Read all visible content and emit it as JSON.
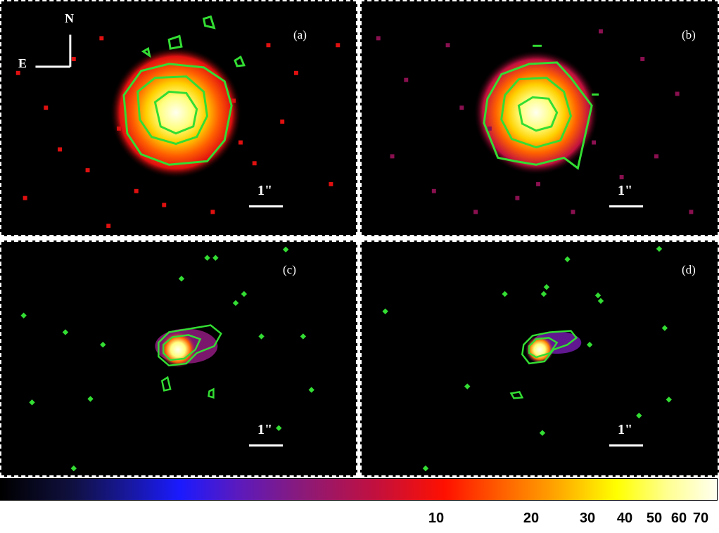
{
  "panels": [
    {
      "id": "a",
      "label": "(a)",
      "scale_label": "1\""
    },
    {
      "id": "b",
      "label": "(b)",
      "scale_label": "1\""
    },
    {
      "id": "c",
      "label": "(c)",
      "scale_label": "1\""
    },
    {
      "id": "d",
      "label": "(d)",
      "scale_label": "1\""
    }
  ],
  "compass": {
    "north": "N",
    "east": "E"
  },
  "colorbar": {
    "ticks": [
      "10",
      "20",
      "30",
      "40",
      "50",
      "60",
      "70"
    ],
    "colors": [
      "#000000",
      "#1a1aff",
      "#8a1a7a",
      "#ff1000",
      "#ffa000",
      "#ffff00",
      "#fffff0"
    ]
  },
  "contour_color": "#33dd33"
}
